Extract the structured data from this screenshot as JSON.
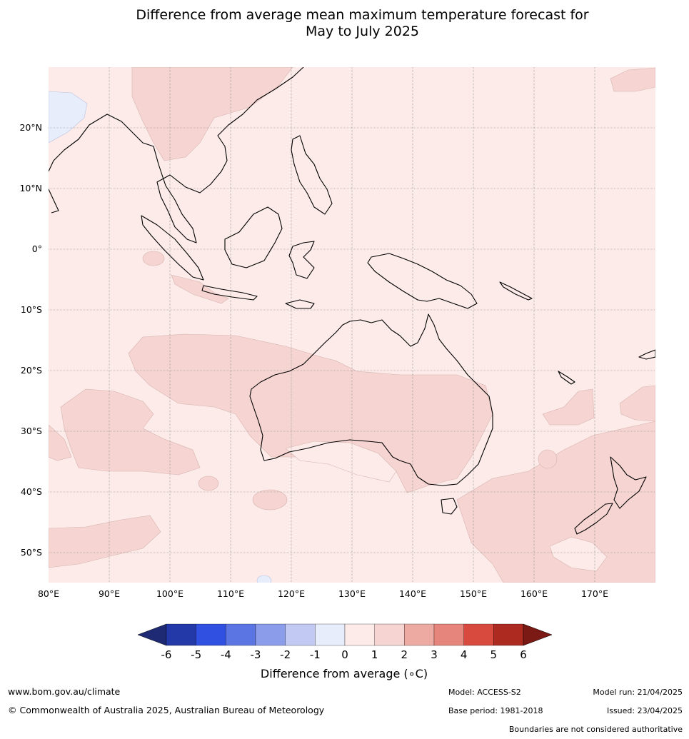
{
  "title_line1": "Difference from average mean maximum temperature forecast for",
  "title_line2": "May to July 2025",
  "map": {
    "lon_ticks": [
      "80°E",
      "90°E",
      "100°E",
      "110°E",
      "120°E",
      "130°E",
      "140°E",
      "150°E",
      "160°E",
      "170°E"
    ],
    "lat_ticks": [
      "20°N",
      "10°N",
      "0°",
      "10°S",
      "20°S",
      "30°S",
      "40°S",
      "50°S"
    ],
    "lon_range": [
      80,
      180
    ],
    "lat_range": [
      -55,
      30
    ],
    "background_category": "0 to 1",
    "background_color": "#fcebe9",
    "warm_color": "#f5d4d1",
    "cool_color": "#e8edfb",
    "gridlines": true
  },
  "colorbar": {
    "label": "Difference from average (∘C)",
    "tick_labels": [
      "-6",
      "-5",
      "-4",
      "-3",
      "-2",
      "-1",
      "0",
      "1",
      "2",
      "3",
      "4",
      "5",
      "6"
    ],
    "low_extend_color": "#1e2a73",
    "high_extend_color": "#7b1a14",
    "bin_colors": [
      "#2439a8",
      "#2f50e0",
      "#5b75e2",
      "#8a9cea",
      "#c2c9f3",
      "#e8edfb",
      "#fcebe9",
      "#f5d4d1",
      "#ecaaa3",
      "#e6857b",
      "#d94a3e",
      "#ad2a20"
    ]
  },
  "footer": {
    "website": "www.bom.gov.au/climate",
    "copyright": "© Commonwealth of Australia 2025, Australian Bureau of Meteorology",
    "model": "Model: ACCESS-S2",
    "model_run": "Model run: 21/04/2025",
    "base_period": "Base period: 1981-2018",
    "issued": "Issued: 23/04/2025",
    "disclaimer": "Boundaries are not considered authoritative"
  }
}
